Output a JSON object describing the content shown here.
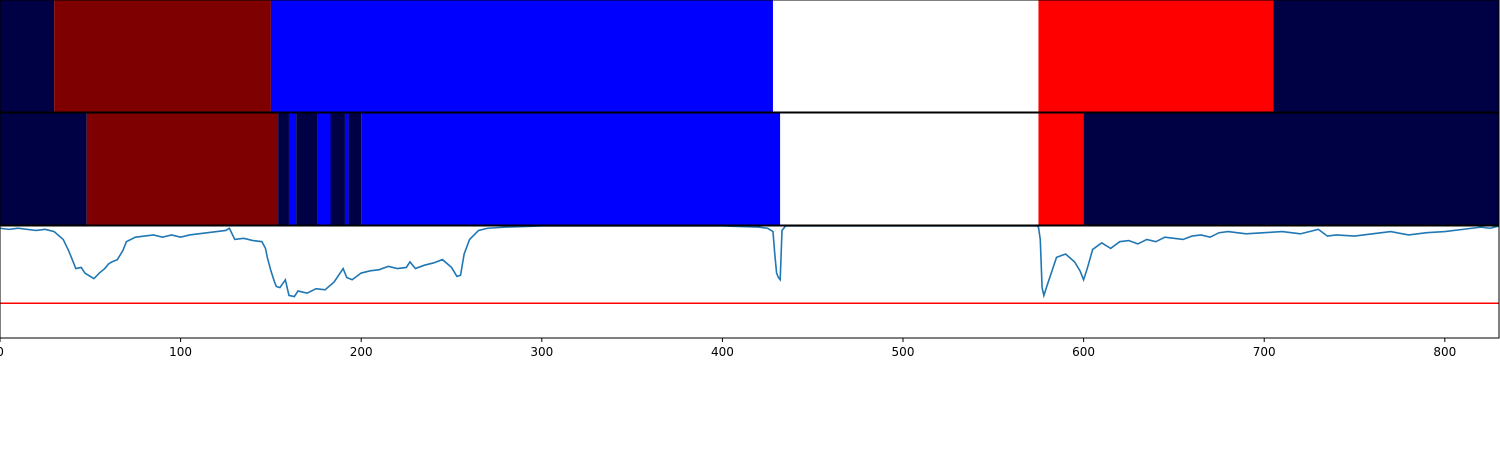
{
  "chart_data": {
    "type": "segmentation-timeline",
    "title": "",
    "xlabel": "",
    "ylabel": "",
    "xlim": [
      0,
      830
    ],
    "xticks": [
      0,
      100,
      200,
      300,
      400,
      500,
      600,
      700,
      800
    ],
    "grid": false,
    "legend": "none",
    "colors": {
      "navy": "#000044",
      "darkred": "#7f0000",
      "blue": "#0000ff",
      "white": "#ffffff",
      "red": "#ff0000",
      "line": "#1f77b4",
      "threshold": "#ff0000"
    },
    "ground_truth": [
      {
        "start": 0,
        "end": 30,
        "color": "#000044"
      },
      {
        "start": 30,
        "end": 150,
        "color": "#7f0000"
      },
      {
        "start": 150,
        "end": 428,
        "color": "#0000ff"
      },
      {
        "start": 428,
        "end": 575,
        "color": "#ffffff"
      },
      {
        "start": 575,
        "end": 705,
        "color": "#ff0000"
      },
      {
        "start": 705,
        "end": 830,
        "color": "#000044"
      }
    ],
    "prediction": [
      {
        "start": 0,
        "end": 48,
        "color": "#000044"
      },
      {
        "start": 48,
        "end": 154,
        "color": "#7f0000"
      },
      {
        "start": 154,
        "end": 160,
        "color": "#000044"
      },
      {
        "start": 160,
        "end": 164,
        "color": "#0000ff"
      },
      {
        "start": 164,
        "end": 176,
        "color": "#000044"
      },
      {
        "start": 176,
        "end": 183,
        "color": "#0000ff"
      },
      {
        "start": 183,
        "end": 191,
        "color": "#000044"
      },
      {
        "start": 191,
        "end": 193,
        "color": "#0000ff"
      },
      {
        "start": 193,
        "end": 200,
        "color": "#000044"
      },
      {
        "start": 200,
        "end": 432,
        "color": "#0000ff"
      },
      {
        "start": 432,
        "end": 575,
        "color": "#ffffff"
      },
      {
        "start": 575,
        "end": 600,
        "color": "#ff0000"
      },
      {
        "start": 600,
        "end": 830,
        "color": "#000044"
      }
    ],
    "confidence": {
      "ylim": [
        0,
        1
      ],
      "threshold": 0.31,
      "x": [
        0,
        5,
        10,
        15,
        20,
        25,
        30,
        35,
        38,
        40,
        42,
        45,
        47,
        50,
        52,
        55,
        58,
        60,
        62,
        65,
        68,
        70,
        75,
        80,
        85,
        90,
        95,
        100,
        105,
        110,
        115,
        120,
        125,
        127,
        130,
        135,
        140,
        145,
        147,
        148,
        150,
        152,
        153,
        155,
        158,
        160,
        163,
        165,
        170,
        175,
        180,
        185,
        190,
        192,
        195,
        200,
        205,
        210,
        215,
        220,
        225,
        227,
        230,
        235,
        240,
        245,
        250,
        253,
        255,
        257,
        260,
        265,
        270,
        280,
        300,
        350,
        400,
        420,
        425,
        428,
        429,
        430,
        431,
        432,
        433,
        435,
        440,
        500,
        550,
        570,
        574,
        575,
        576,
        577,
        578,
        580,
        585,
        590,
        595,
        598,
        600,
        602,
        605,
        610,
        615,
        620,
        625,
        630,
        635,
        640,
        645,
        650,
        655,
        660,
        665,
        670,
        675,
        680,
        690,
        700,
        710,
        720,
        730,
        735,
        740,
        750,
        760,
        770,
        780,
        790,
        800,
        810,
        820,
        825,
        830
      ],
      "y": [
        0.98,
        0.97,
        0.98,
        0.97,
        0.96,
        0.97,
        0.95,
        0.88,
        0.78,
        0.7,
        0.62,
        0.63,
        0.58,
        0.55,
        0.53,
        0.58,
        0.62,
        0.66,
        0.68,
        0.7,
        0.78,
        0.86,
        0.9,
        0.91,
        0.92,
        0.9,
        0.92,
        0.9,
        0.92,
        0.93,
        0.94,
        0.95,
        0.96,
        0.98,
        0.88,
        0.89,
        0.87,
        0.86,
        0.8,
        0.72,
        0.6,
        0.5,
        0.46,
        0.45,
        0.52,
        0.38,
        0.37,
        0.42,
        0.4,
        0.44,
        0.43,
        0.5,
        0.62,
        0.54,
        0.52,
        0.58,
        0.6,
        0.61,
        0.64,
        0.62,
        0.63,
        0.68,
        0.62,
        0.65,
        0.67,
        0.7,
        0.63,
        0.55,
        0.56,
        0.75,
        0.88,
        0.96,
        0.98,
        0.99,
        1.0,
        1.0,
        1.0,
        0.99,
        0.98,
        0.95,
        0.75,
        0.58,
        0.54,
        0.52,
        0.96,
        1.0,
        1.0,
        1.0,
        1.0,
        1.0,
        1.0,
        0.99,
        0.88,
        0.45,
        0.38,
        0.48,
        0.72,
        0.75,
        0.68,
        0.6,
        0.52,
        0.62,
        0.79,
        0.85,
        0.8,
        0.86,
        0.87,
        0.84,
        0.88,
        0.86,
        0.9,
        0.89,
        0.88,
        0.91,
        0.92,
        0.9,
        0.94,
        0.95,
        0.93,
        0.94,
        0.95,
        0.93,
        0.97,
        0.91,
        0.92,
        0.91,
        0.93,
        0.95,
        0.92,
        0.94,
        0.95,
        0.97,
        0.99,
        0.98,
        1.0
      ]
    }
  }
}
